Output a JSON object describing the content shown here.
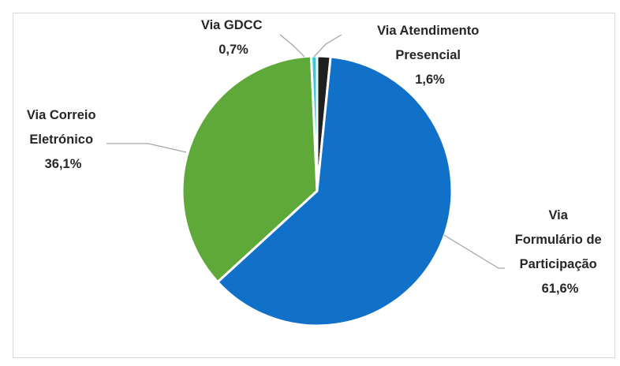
{
  "chart_data": {
    "type": "pie",
    "title": "",
    "slices": [
      {
        "key": "presencial",
        "label_lines": [
          "Via Atendimento",
          "Presencial"
        ],
        "pct_text": "1,6%",
        "value": 1.6,
        "color": "#1f1f1f"
      },
      {
        "key": "formulario",
        "label_lines": [
          "Via",
          "Formulário de",
          "Participação"
        ],
        "pct_text": "61,6%",
        "value": 61.6,
        "color": "#1170c8"
      },
      {
        "key": "correio",
        "label_lines": [
          "Via Correio",
          "Eletrónico"
        ],
        "pct_text": "36,1%",
        "value": 36.1,
        "color": "#5fa83a"
      },
      {
        "key": "gdcc",
        "label_lines": [
          "Via GDCC"
        ],
        "pct_text": "0,7%",
        "value": 0.7,
        "color": "#35c9dc"
      }
    ]
  }
}
